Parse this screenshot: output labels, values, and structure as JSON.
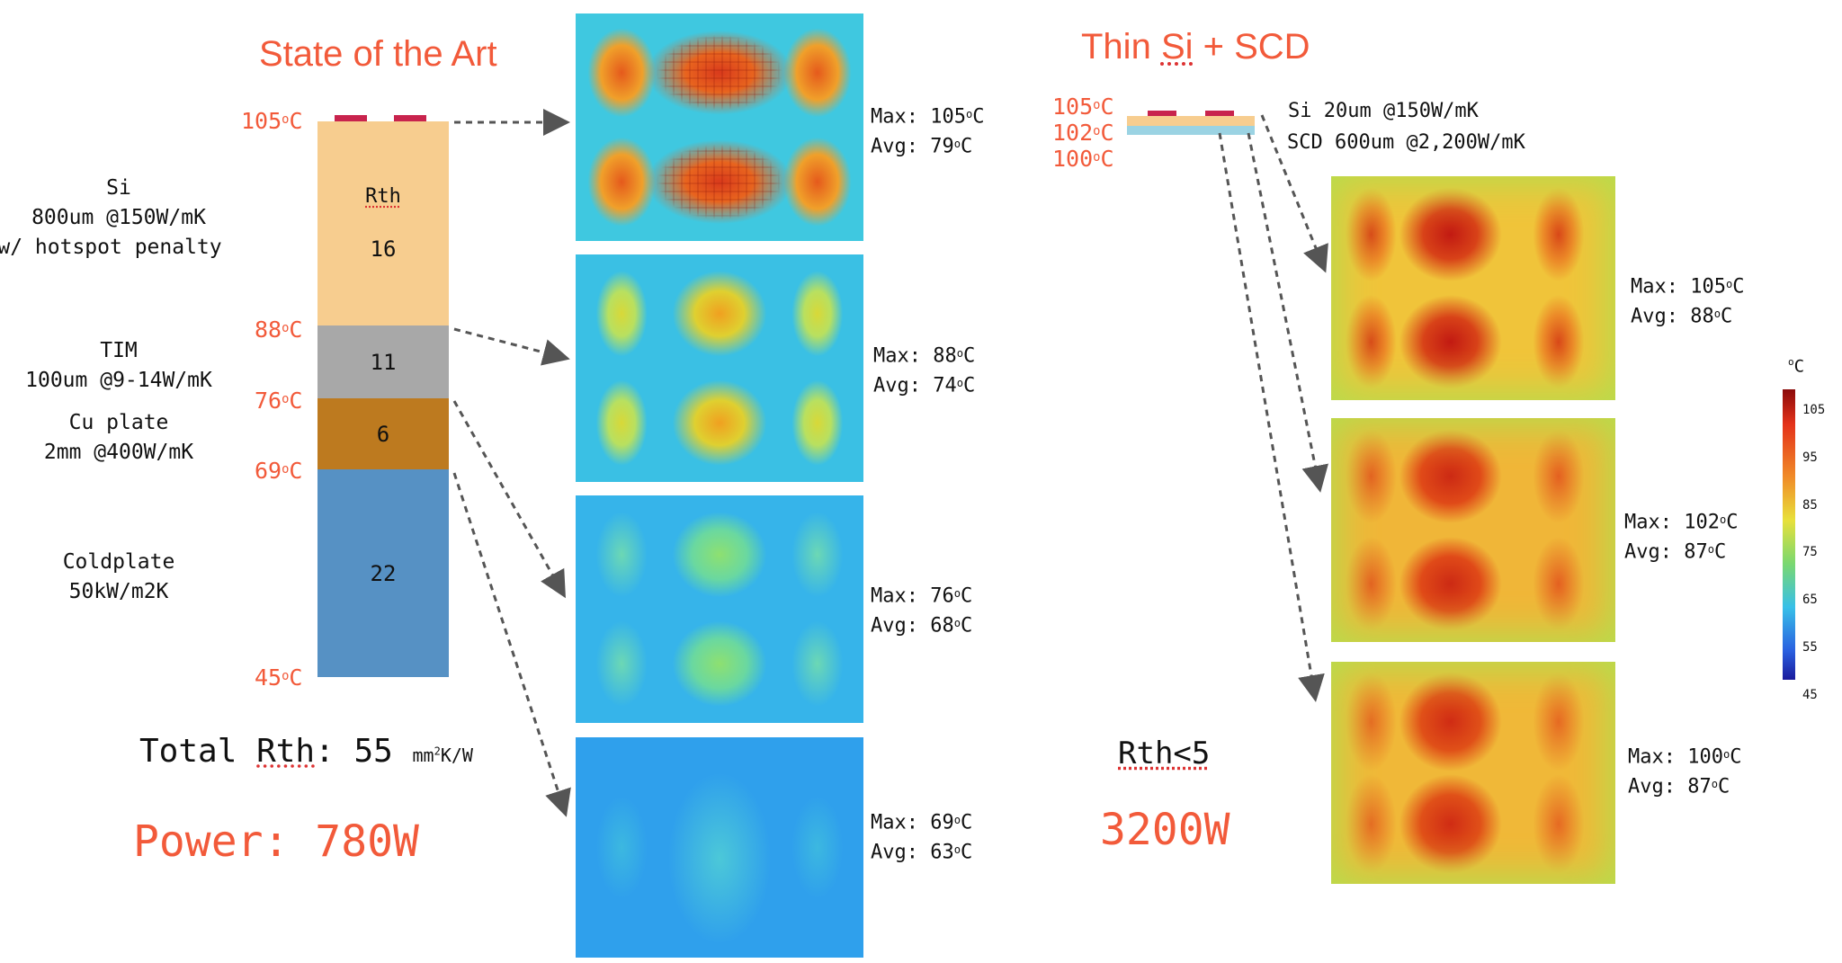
{
  "left": {
    "title": "State of the Art",
    "temps": [
      "105",
      "88",
      "76",
      "69",
      "45"
    ],
    "temp_unit": "C",
    "degree_mark": "o",
    "rth_header": "Rth",
    "layers": [
      {
        "name": "Si",
        "lines": [
          "Si",
          "800um @150W/mK",
          "w/ hotspot penalty"
        ],
        "rth": "16",
        "color": "#f7cd8f"
      },
      {
        "name": "TIM",
        "lines": [
          "TIM",
          "100um @9-14W/mK"
        ],
        "rth": "11",
        "color": "#a8a8a8"
      },
      {
        "name": "Cu plate",
        "lines": [
          "Cu plate",
          "2mm @400W/mK"
        ],
        "rth": "6",
        "color": "#bd7a1f"
      },
      {
        "name": "Coldplate",
        "lines": [
          "Coldplate",
          "50kW/m2K"
        ],
        "rth": "22",
        "color": "#5691c4"
      }
    ],
    "total_rth_label": "Total",
    "total_rth_word": "Rth",
    "total_rth_value": "55",
    "total_rth_unit_pre": "mm",
    "total_rth_unit_sup": "2",
    "total_rth_unit_post": "K/W",
    "power": "Power: 780W",
    "stats": [
      {
        "max": "105",
        "avg": "79"
      },
      {
        "max": "88",
        "avg": "74"
      },
      {
        "max": "76",
        "avg": "68"
      },
      {
        "max": "69",
        "avg": "63"
      }
    ]
  },
  "right": {
    "title_pre": "Thin ",
    "title_si": "Si",
    "title_post": " + SCD",
    "temps": [
      "105",
      "102",
      "100"
    ],
    "layer_si": "Si 20um @150W/mK",
    "layer_scd": "SCD 600um @2,200W/mK",
    "rth": "Rth<5",
    "power": "3200W",
    "stats": [
      {
        "max": "105",
        "avg": "88"
      },
      {
        "max": "102",
        "avg": "87"
      },
      {
        "max": "100",
        "avg": "87"
      }
    ]
  },
  "stat_labels": {
    "max": "Max:",
    "avg": "Avg:"
  },
  "colorbar": {
    "unit": "oC",
    "ticks": [
      "105",
      "95",
      "85",
      "75",
      "65",
      "55",
      "45"
    ]
  },
  "colors": {
    "accent": "#f25a3a",
    "si": "#f7cd8f",
    "tim": "#a8a8a8",
    "cu": "#bd7a1f",
    "coldplate": "#5691c4",
    "scd": "#9bd3e3"
  }
}
